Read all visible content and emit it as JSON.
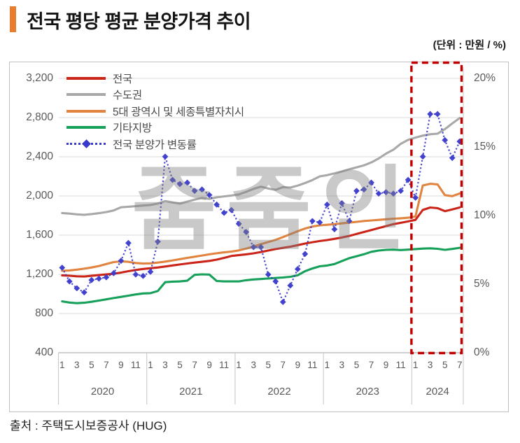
{
  "header": {
    "title": "전국 평당 평균 분양가격 추이",
    "unit": "(단위 : 만원 / %)",
    "accent_color": "#e87d2e"
  },
  "footer": {
    "source": "출처 : 주택도시보증공사 (HUG)"
  },
  "watermark": "줌줌인",
  "chart_data": {
    "type": "line",
    "title": "전국 평당 평균 분양가격 추이",
    "x_start": "2020-01",
    "x_end": "2024-07",
    "point_count": 55,
    "years": [
      {
        "label": "2020",
        "month_count": 12,
        "month_ticks": [
          "1",
          "3",
          "5",
          "7",
          "9",
          "11"
        ]
      },
      {
        "label": "2021",
        "month_count": 12,
        "month_ticks": [
          "1",
          "3",
          "5",
          "7",
          "9",
          "11"
        ]
      },
      {
        "label": "2022",
        "month_count": 12,
        "month_ticks": [
          "1",
          "3",
          "5",
          "7",
          "9",
          "11"
        ]
      },
      {
        "label": "2023",
        "month_count": 12,
        "month_ticks": [
          "1",
          "3",
          "5",
          "7",
          "9",
          "11"
        ]
      },
      {
        "label": "2024",
        "month_count": 7,
        "month_ticks": [
          "1",
          "3",
          "5",
          "7"
        ]
      }
    ],
    "left_axis": {
      "ticks": [
        "3,200",
        "2,800",
        "2,400",
        "2,000",
        "1,600",
        "1,200",
        "800",
        "400"
      ],
      "min": 400,
      "max": 3200,
      "unit": "만원"
    },
    "right_axis": {
      "ticks": [
        "20%",
        "15%",
        "10%",
        "5%",
        "0%"
      ],
      "min": 0,
      "max": 20,
      "unit": "%"
    },
    "grid": "horizontal",
    "legend_position": "top-left-inside",
    "colors": {
      "gridline": "#d9d9d9",
      "axis_line": "#bfbfbf",
      "highlight_box": "#c00000"
    },
    "series": [
      {
        "name": "전국",
        "color": "#cb2419",
        "style": "solid",
        "axis": "left",
        "values": [
          1190,
          1186,
          1180,
          1178,
          1185,
          1192,
          1199,
          1206,
          1218,
          1232,
          1244,
          1255,
          1262,
          1270,
          1280,
          1291,
          1301,
          1311,
          1320,
          1328,
          1337,
          1350,
          1368,
          1388,
          1396,
          1404,
          1414,
          1428,
          1443,
          1458,
          1470,
          1482,
          1498,
          1514,
          1528,
          1540,
          1550,
          1562,
          1576,
          1592,
          1612,
          1632,
          1652,
          1672,
          1692,
          1712,
          1726,
          1740,
          1756,
          1857,
          1882,
          1876,
          1845,
          1862,
          1882
        ]
      },
      {
        "name": "수도권",
        "color": "#a8a8a8",
        "style": "solid",
        "axis": "left",
        "values": [
          1826,
          1820,
          1812,
          1808,
          1815,
          1824,
          1836,
          1852,
          1884,
          1890,
          1896,
          1902,
          1908,
          1922,
          1948,
          1934,
          1922,
          1942,
          1962,
          1980,
          1970,
          1986,
          1996,
          2004,
          2016,
          2042,
          2072,
          2094,
          2076,
          2062,
          2090,
          2086,
          2106,
          2132,
          2162,
          2200,
          2212,
          2230,
          2250,
          2272,
          2292,
          2312,
          2342,
          2382,
          2432,
          2472,
          2532,
          2572,
          2596,
          2616,
          2630,
          2636,
          2682,
          2740,
          2795
        ]
      },
      {
        "name": "5대 광역시 및 세종특별자치시",
        "color": "#e08440",
        "style": "solid",
        "axis": "left",
        "values": [
          1236,
          1240,
          1248,
          1258,
          1270,
          1285,
          1305,
          1325,
          1332,
          1328,
          1316,
          1310,
          1312,
          1320,
          1330,
          1342,
          1355,
          1368,
          1380,
          1392,
          1404,
          1415,
          1424,
          1432,
          1444,
          1462,
          1484,
          1508,
          1530,
          1552,
          1580,
          1610,
          1640,
          1668,
          1688,
          1700,
          1706,
          1712,
          1720,
          1728,
          1736,
          1744,
          1750,
          1756,
          1762,
          1768,
          1772,
          1778,
          1790,
          2107,
          2124,
          2118,
          2008,
          1998,
          2026
        ]
      },
      {
        "name": "기타지방",
        "color": "#16a059",
        "style": "solid",
        "axis": "left",
        "values": [
          924,
          912,
          906,
          910,
          920,
          932,
          945,
          958,
          970,
          982,
          995,
          1005,
          1008,
          1030,
          1120,
          1126,
          1128,
          1135,
          1195,
          1200,
          1198,
          1132,
          1128,
          1128,
          1128,
          1140,
          1148,
          1152,
          1158,
          1163,
          1168,
          1175,
          1190,
          1232,
          1260,
          1282,
          1290,
          1305,
          1335,
          1365,
          1385,
          1405,
          1430,
          1443,
          1450,
          1452,
          1448,
          1452,
          1458,
          1463,
          1466,
          1461,
          1450,
          1459,
          1471
        ]
      },
      {
        "name": "전국 분양가 변동률",
        "color": "#3a3acc",
        "style": "dotted-diamond",
        "axis": "right",
        "values": [
          6.2,
          5.2,
          4.7,
          4.4,
          5.3,
          5.4,
          5.5,
          5.8,
          6.7,
          8.0,
          5.7,
          5.6,
          5.9,
          8.1,
          14.3,
          12.6,
          12.3,
          12.4,
          11.8,
          11.9,
          11.5,
          10.8,
          10.2,
          10.4,
          9.4,
          8.8,
          7.7,
          7.7,
          5.7,
          5.2,
          3.7,
          4.9,
          6.1,
          7.2,
          9.6,
          9.5,
          10.8,
          9.0,
          10.9,
          9.6,
          11.8,
          11.9,
          12.4,
          11.6,
          11.7,
          11.6,
          11.8,
          12.6,
          11.3,
          14.3,
          17.4,
          17.4,
          15.5,
          14.2,
          15.4
        ]
      }
    ],
    "highlight_box": {
      "year": "2024",
      "color": "#c00000",
      "style": "dashed"
    }
  }
}
